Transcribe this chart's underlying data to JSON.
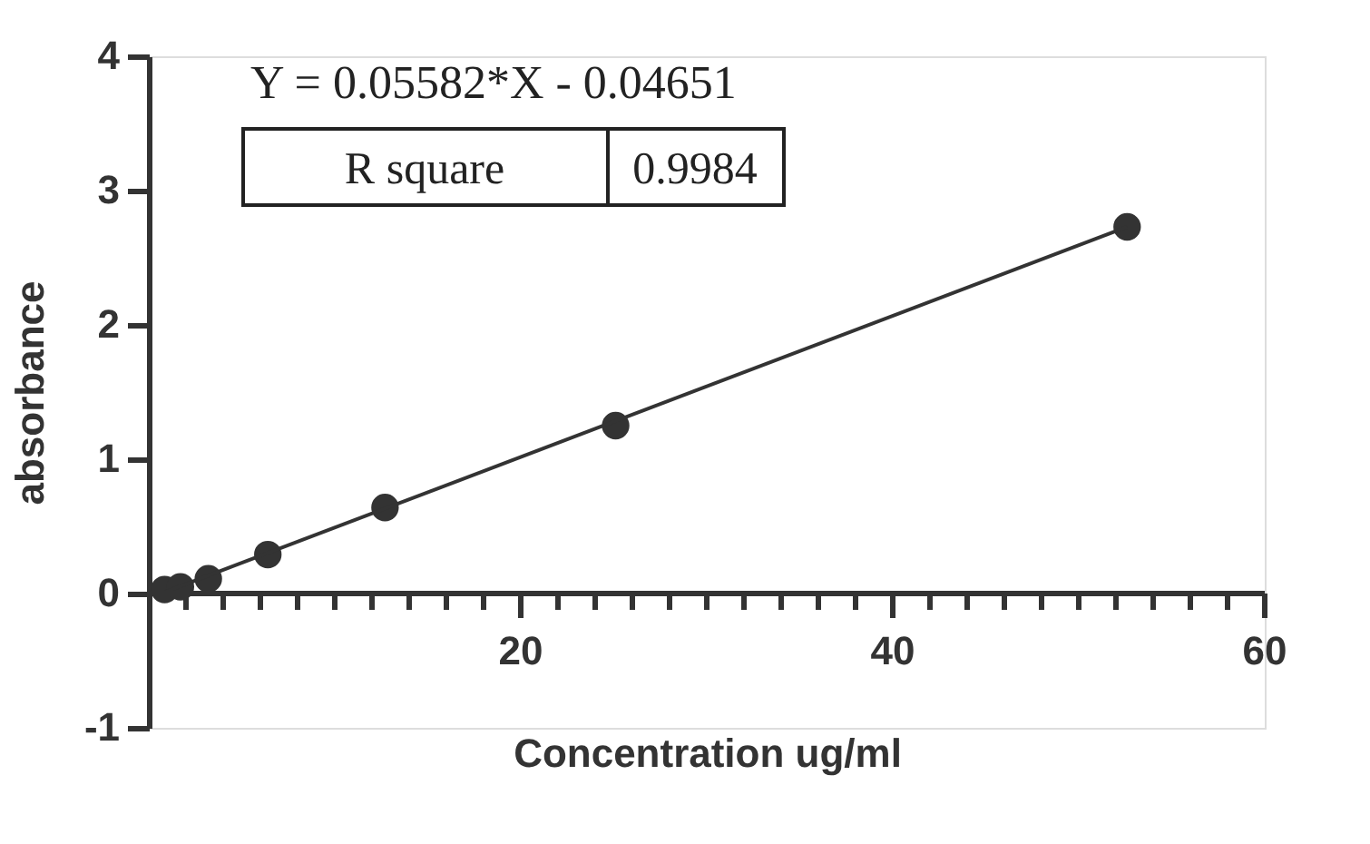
{
  "chart_data": {
    "type": "scatter",
    "xlabel": "Concentration ug/ml",
    "ylabel": "absorbance",
    "annotations": [
      "Y = 0.05582*X - 0.04651",
      "R square",
      "0.9984"
    ],
    "xlim": [
      0,
      60
    ],
    "ylim": [
      -1,
      4
    ],
    "xticks": [
      {
        "value": 2,
        "label": null
      },
      {
        "value": 4,
        "label": null
      },
      {
        "value": 6,
        "label": null
      },
      {
        "value": 8,
        "label": null
      },
      {
        "value": 10,
        "label": null
      },
      {
        "value": 12,
        "label": null
      },
      {
        "value": 14,
        "label": null
      },
      {
        "value": 16,
        "label": null
      },
      {
        "value": 18,
        "label": null
      },
      20,
      {
        "value": 22,
        "label": null
      },
      {
        "value": 24,
        "label": null
      },
      {
        "value": 26,
        "label": null
      },
      {
        "value": 28,
        "label": null
      },
      {
        "value": 30,
        "label": null
      },
      {
        "value": 32,
        "label": null
      },
      {
        "value": 34,
        "label": null
      },
      {
        "value": 36,
        "label": null
      },
      {
        "value": 38,
        "label": null
      },
      40,
      {
        "value": 42,
        "label": null
      },
      {
        "value": 44,
        "label": null
      },
      {
        "value": 46,
        "label": null
      },
      {
        "value": 48,
        "label": null
      },
      {
        "value": 50,
        "label": null
      },
      {
        "value": 52,
        "label": null
      },
      {
        "value": 54,
        "label": null
      },
      {
        "value": 56,
        "label": null
      },
      {
        "value": 58,
        "label": null
      },
      60
    ],
    "yticks": [
      -1,
      0,
      1,
      2,
      3,
      4
    ],
    "grid": false,
    "marker": "circle",
    "series": [
      {
        "color": "#333333",
        "x": [
          0.85,
          1.7,
          3.2,
          6.4,
          12.7,
          25.1,
          52.6
        ],
        "values": [
          0.03,
          0.05,
          0.11,
          0.29,
          0.64,
          1.25,
          2.73
        ]
      },
      {
        "type": "line",
        "color": "#333333",
        "line_style": "solid",
        "marker": "none",
        "x": [
          0.85,
          52.6
        ],
        "values": [
          0.01,
          2.73
        ]
      }
    ]
  }
}
